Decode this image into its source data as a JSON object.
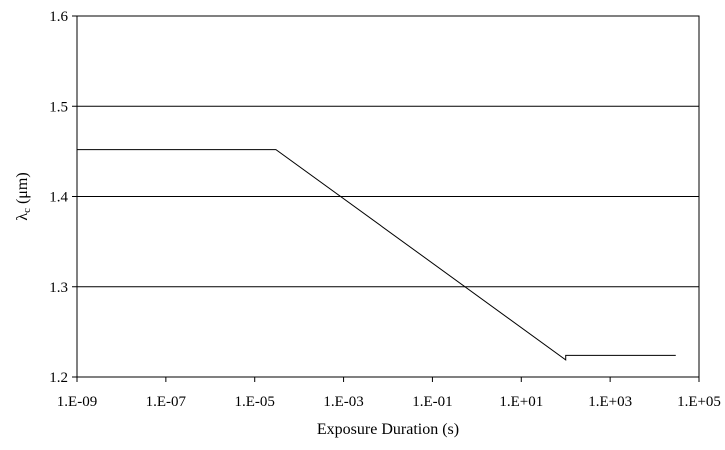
{
  "chart_data": {
    "type": "line",
    "title": "",
    "xlabel": "Exposure Duration (s)",
    "ylabel_main": "λ",
    "ylabel_sub": "c",
    "ylabel_unit": " (μm)",
    "x_scale": "log",
    "xlim": [
      1e-09,
      100000.0
    ],
    "ylim": [
      1.2,
      1.6
    ],
    "grid": "horizontal",
    "legend": "none",
    "x_ticks": [
      {
        "value": 1e-09,
        "label": "1.E-09"
      },
      {
        "value": 1e-07,
        "label": "1.E-07"
      },
      {
        "value": 1e-05,
        "label": "1.E-05"
      },
      {
        "value": 0.001,
        "label": "1.E-03"
      },
      {
        "value": 0.1,
        "label": "1.E-01"
      },
      {
        "value": 10.0,
        "label": "1.E+01"
      },
      {
        "value": 1000.0,
        "label": "1.E+03"
      },
      {
        "value": 100000.0,
        "label": "1.E+05"
      }
    ],
    "y_ticks": [
      {
        "value": 1.2,
        "label": "1.2"
      },
      {
        "value": 1.3,
        "label": "1.3"
      },
      {
        "value": 1.4,
        "label": "1.4"
      },
      {
        "value": 1.5,
        "label": "1.5"
      },
      {
        "value": 1.6,
        "label": "1.6"
      }
    ],
    "series": [
      {
        "x": [
          1e-09,
          3e-05,
          100,
          100,
          30000
        ],
        "y": [
          1.452,
          1.452,
          1.219,
          1.224,
          1.224
        ]
      }
    ],
    "colors": {
      "line": "#000000",
      "grid": "#000000",
      "background": "#ffffff"
    }
  }
}
